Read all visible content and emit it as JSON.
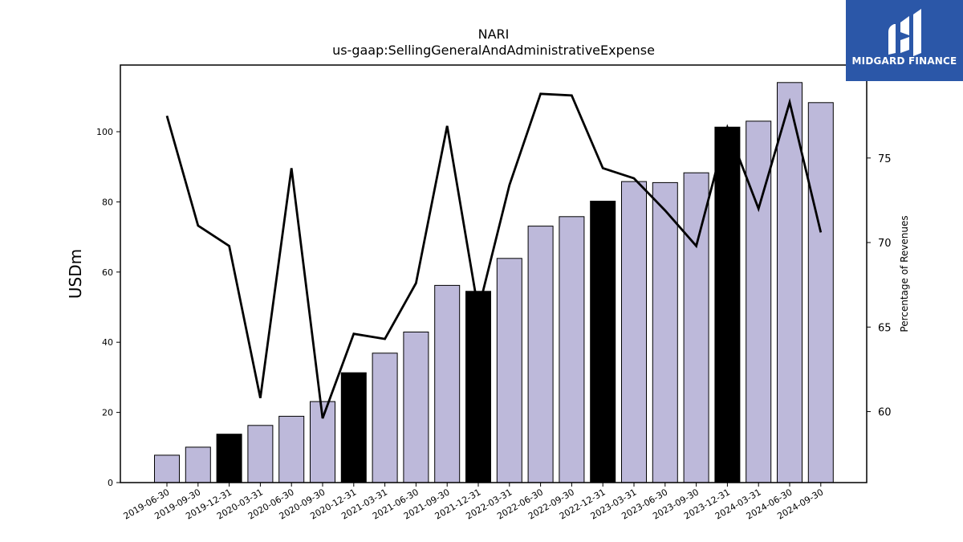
{
  "chart_data": {
    "type": "bar",
    "title": "NARI",
    "subtitle": "us-gaap:SellingGeneralAndAdministrativeExpense",
    "ylabel": "USDm",
    "y2label": "Percentage of Revenues",
    "ylim": [
      0,
      119
    ],
    "y2lim": [
      55.8,
      80.5
    ],
    "yticks": [
      0,
      20,
      40,
      60,
      80,
      100
    ],
    "y2ticks": [
      60,
      65,
      70,
      75
    ],
    "categories": [
      "2019-06-30",
      "2019-09-30",
      "2019-12-31",
      "2020-03-31",
      "2020-06-30",
      "2020-09-30",
      "2020-12-31",
      "2021-03-31",
      "2021-06-30",
      "2021-09-30",
      "2021-12-31",
      "2022-03-31",
      "2022-06-30",
      "2022-09-30",
      "2022-12-31",
      "2023-03-31",
      "2023-06-30",
      "2023-09-30",
      "2023-12-31",
      "2024-03-31",
      "2024-06-30",
      "2024-09-30"
    ],
    "series": [
      {
        "type": "bar",
        "values": [
          7.8,
          10.1,
          13.8,
          16.3,
          18.9,
          23.1,
          31.3,
          36.9,
          42.9,
          56.2,
          54.5,
          63.9,
          73.1,
          75.8,
          80.2,
          85.8,
          85.5,
          88.3,
          101.3,
          103.0,
          114.0,
          108.3
        ],
        "highlight": [
          false,
          false,
          true,
          false,
          false,
          false,
          true,
          false,
          false,
          false,
          true,
          false,
          false,
          false,
          true,
          false,
          false,
          false,
          true,
          false,
          false,
          false
        ],
        "color": "#bdb9da",
        "highlight_color": "#000000"
      },
      {
        "type": "line",
        "axis": "right",
        "values": [
          77.5,
          71.0,
          69.8,
          60.8,
          74.4,
          59.6,
          64.6,
          64.3,
          67.6,
          76.9,
          66.0,
          73.4,
          78.8,
          78.7,
          74.4,
          73.8,
          71.9,
          69.8,
          76.8,
          72.0,
          78.3,
          70.6
        ],
        "color": "#000000"
      }
    ],
    "grid": false,
    "legend": "none"
  },
  "logo": {
    "text": "MIDGARD FINANCE",
    "color": "#2b57a8"
  }
}
